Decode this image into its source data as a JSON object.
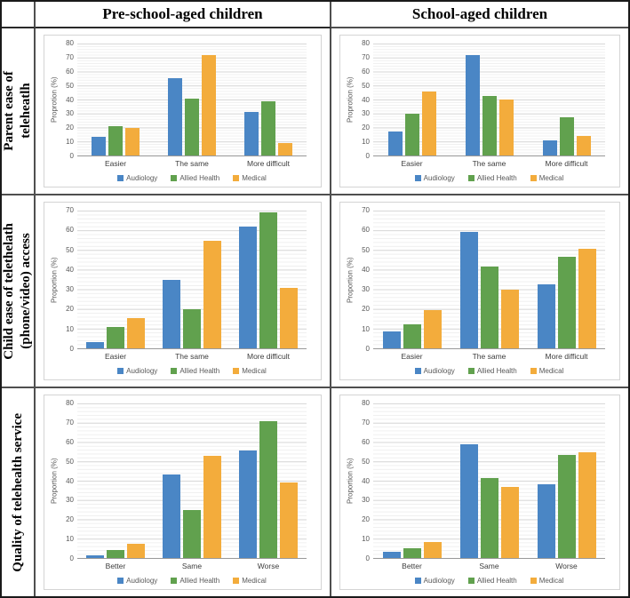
{
  "table": {
    "col_headers": [
      "Pre-school-aged children",
      "School-aged children"
    ],
    "row_headers": [
      "Parent ease of\nteleheatlh",
      "Child ease of telethelath\n(phone/video) access",
      "Quality of telehealth service"
    ]
  },
  "colors": {
    "audiology": "#4A86C5",
    "allied_health": "#61A14E",
    "medical": "#F3AC3C"
  },
  "legend_labels": [
    "Audiology",
    "Allied Health",
    "Medical"
  ],
  "chart_data": [
    {
      "type": "bar",
      "row": "Parent ease of teleheatlh",
      "col": "Pre-school-aged children",
      "ylabel": "Proprotion (%)",
      "ylim": [
        0,
        80
      ],
      "ytick_step": 10,
      "grid": "on",
      "legend_position": "bottom",
      "categories": [
        "Easier",
        "The same",
        "More difficult"
      ],
      "series": [
        {
          "name": "Audiology",
          "color": "#4A86C5",
          "values": [
            13.5,
            55.5,
            31
          ]
        },
        {
          "name": "Allied Health",
          "color": "#61A14E",
          "values": [
            21,
            40.5,
            38.5
          ]
        },
        {
          "name": "Medical",
          "color": "#F3AC3C",
          "values": [
            20,
            72,
            9
          ]
        }
      ]
    },
    {
      "type": "bar",
      "row": "Parent ease of teleheatlh",
      "col": "School-aged children",
      "ylabel": "Proprotion (%)",
      "ylim": [
        0,
        80
      ],
      "ytick_step": 10,
      "grid": "on",
      "legend_position": "bottom",
      "categories": [
        "Easier",
        "The same",
        "More difficult"
      ],
      "series": [
        {
          "name": "Audiology",
          "color": "#4A86C5",
          "values": [
            17,
            72,
            11
          ]
        },
        {
          "name": "Allied Health",
          "color": "#61A14E",
          "values": [
            30,
            42.5,
            27
          ]
        },
        {
          "name": "Medical",
          "color": "#F3AC3C",
          "values": [
            45.5,
            40,
            14
          ]
        }
      ]
    },
    {
      "type": "bar",
      "row": "Child ease of telethelath (phone/video) access",
      "col": "Pre-school-aged children",
      "ylabel": "Proportion (%)",
      "ylim": [
        0,
        70
      ],
      "ytick_step": 10,
      "grid": "on",
      "legend_position": "bottom",
      "categories": [
        "Easier",
        "The same",
        "More difficult"
      ],
      "series": [
        {
          "name": "Audiology",
          "color": "#4A86C5",
          "values": [
            3,
            35,
            62
          ]
        },
        {
          "name": "Allied Health",
          "color": "#61A14E",
          "values": [
            11,
            20,
            69
          ]
        },
        {
          "name": "Medical",
          "color": "#F3AC3C",
          "values": [
            15.5,
            54.5,
            30.5
          ]
        }
      ]
    },
    {
      "type": "bar",
      "row": "Child ease of telethelath (phone/video) access",
      "col": "School-aged children",
      "ylabel": "Proportion (%)",
      "ylim": [
        0,
        70
      ],
      "ytick_step": 10,
      "grid": "on",
      "legend_position": "bottom",
      "categories": [
        "Easier",
        "The same",
        "More difficult"
      ],
      "series": [
        {
          "name": "Audiology",
          "color": "#4A86C5",
          "values": [
            8.5,
            59,
            32.5
          ]
        },
        {
          "name": "Allied Health",
          "color": "#61A14E",
          "values": [
            12,
            41.5,
            46.5
          ]
        },
        {
          "name": "Medical",
          "color": "#F3AC3C",
          "values": [
            19.5,
            30,
            50.5
          ]
        }
      ]
    },
    {
      "type": "bar",
      "row": "Quality of telehealth service",
      "col": "Pre-school-aged children",
      "ylabel": "Proportion (%)",
      "ylim": [
        0,
        80
      ],
      "ytick_step": 10,
      "grid": "on",
      "legend_position": "bottom",
      "categories": [
        "Better",
        "Same",
        "Worse"
      ],
      "series": [
        {
          "name": "Audiology",
          "color": "#4A86C5",
          "values": [
            1.5,
            43,
            55.5
          ]
        },
        {
          "name": "Allied Health",
          "color": "#61A14E",
          "values": [
            4,
            25,
            71
          ]
        },
        {
          "name": "Medical",
          "color": "#F3AC3C",
          "values": [
            7.5,
            53,
            39
          ]
        }
      ]
    },
    {
      "type": "bar",
      "row": "Quality of telehealth service",
      "col": "School-aged children",
      "ylabel": "Proportion (%)",
      "ylim": [
        0,
        80
      ],
      "ytick_step": 10,
      "grid": "on",
      "legend_position": "bottom",
      "categories": [
        "Better",
        "Same",
        "Worse"
      ],
      "series": [
        {
          "name": "Audiology",
          "color": "#4A86C5",
          "values": [
            3,
            59,
            38
          ]
        },
        {
          "name": "Allied Health",
          "color": "#61A14E",
          "values": [
            5,
            41.5,
            53.5
          ]
        },
        {
          "name": "Medical",
          "color": "#F3AC3C",
          "values": [
            8.5,
            37,
            54.5
          ]
        }
      ]
    }
  ]
}
